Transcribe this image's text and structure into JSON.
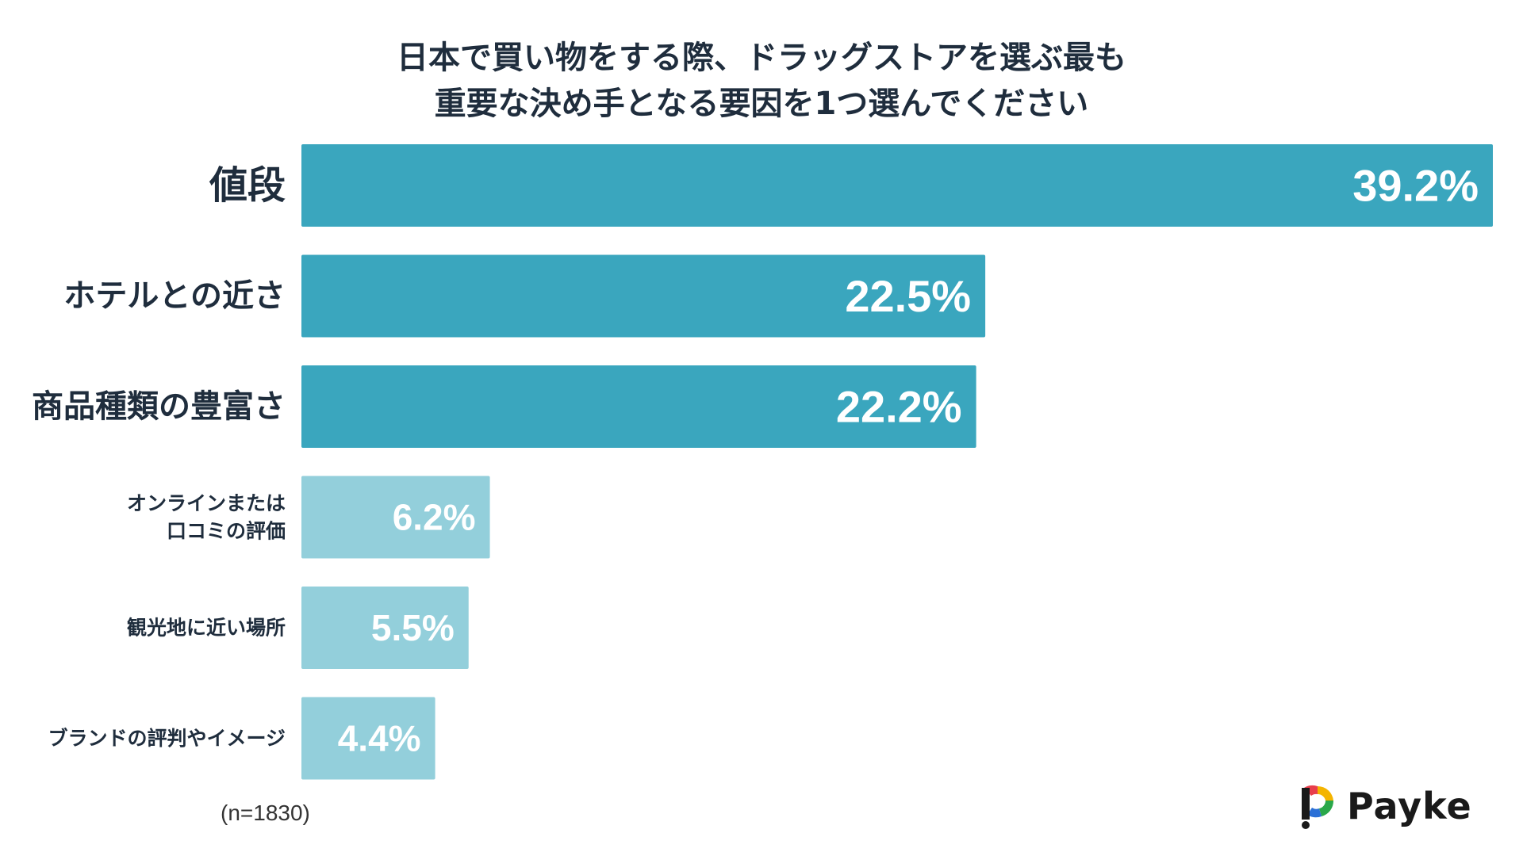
{
  "chart_data": {
    "type": "bar",
    "orientation": "horizontal",
    "title_lines": [
      "日本で買い物をする際、ドラッグストアを選ぶ最も",
      "重要な決め手となる要因を1つ選んでください"
    ],
    "categories": [
      "値段",
      "ホテルとの近さ",
      "商品種類の豊富さ",
      "オンラインまたは\n口コミの評価",
      "観光地に近い場所",
      "ブランドの評判やイメージ"
    ],
    "values": [
      39.2,
      22.5,
      22.2,
      6.2,
      5.5,
      4.4
    ],
    "value_labels": [
      "39.2%",
      "22.5%",
      "22.2%",
      "6.2%",
      "5.5%",
      "4.4%"
    ],
    "unit": "%",
    "highlight_top_n": 3,
    "colors": {
      "highlight": "#3aa6be",
      "normal": "#93cfdb",
      "label_text": "#1f2d3d",
      "value_text": "#ffffff"
    },
    "xlim": [
      0,
      39.2
    ],
    "grid": false,
    "legend": "none"
  },
  "note": "(n=1830)",
  "logo": {
    "text": "Payke",
    "mark_colors": [
      "#e83e4c",
      "#f4b400",
      "#2aa84a",
      "#2a6fd6",
      "#1a1a1a"
    ]
  }
}
